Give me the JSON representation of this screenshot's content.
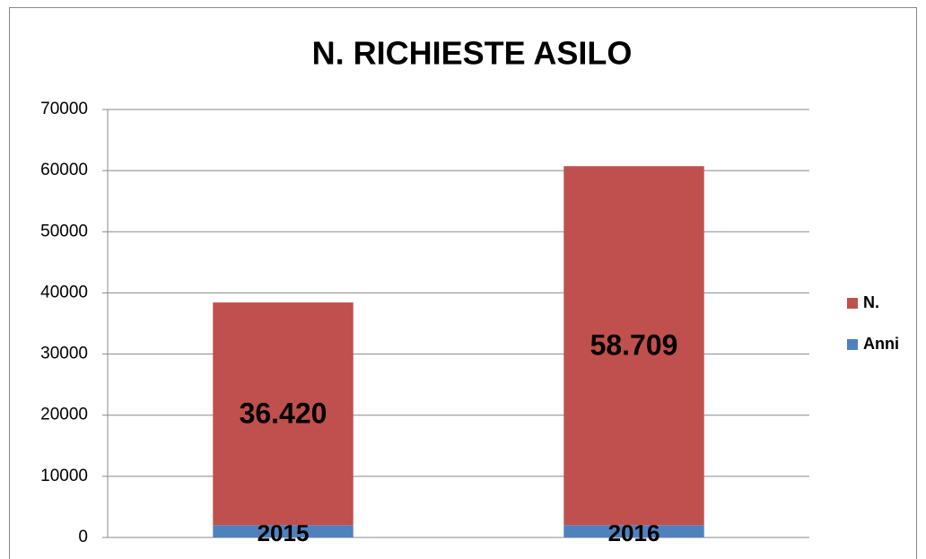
{
  "chart_data": {
    "type": "stacked_bar",
    "title": "N. RICHIESTE ASILO",
    "categories": [
      null,
      null
    ],
    "series": [
      {
        "name": "Anni",
        "color": "#4f81bd",
        "values": [
          2015,
          2016
        ]
      },
      {
        "name": "N.",
        "color": "#c0504d",
        "values": [
          36420,
          58709
        ],
        "value_labels": [
          "36.420",
          "58.709"
        ]
      }
    ],
    "ylim": [
      0,
      70000
    ],
    "yticks": [
      0,
      10000,
      20000,
      30000,
      40000,
      50000,
      60000,
      70000
    ],
    "grid": true,
    "legend": "right"
  }
}
